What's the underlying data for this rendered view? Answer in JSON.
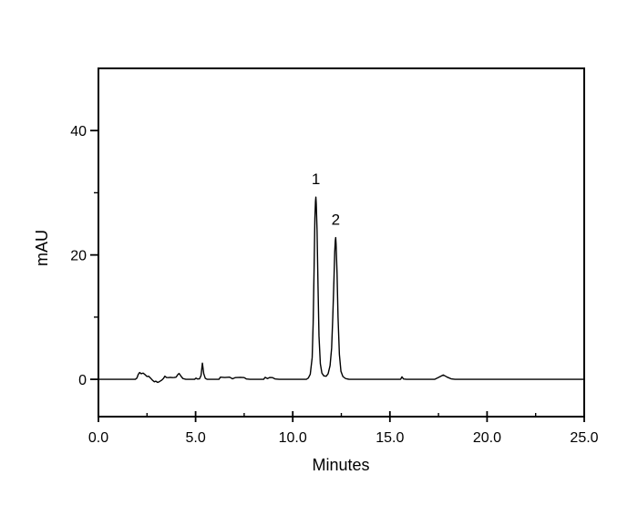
{
  "figure": {
    "background": "#ffffff",
    "line_color": "#000000",
    "text_color": "#000000"
  },
  "chart_data": {
    "type": "line",
    "title": "",
    "xlabel": "Minutes",
    "ylabel": "mAU",
    "xlim": [
      0,
      25
    ],
    "ylim": [
      -6,
      50
    ],
    "grid": false,
    "legend_position": "none",
    "x_major_ticks": [
      {
        "value": 0,
        "label": "0.0"
      },
      {
        "value": 5,
        "label": "5.0"
      },
      {
        "value": 10,
        "label": "10.0"
      },
      {
        "value": 15,
        "label": "15.0"
      },
      {
        "value": 20,
        "label": "20.0"
      },
      {
        "value": 25,
        "label": "25.0"
      }
    ],
    "x_minor_ticks": [
      2.5,
      7.5,
      12.5,
      17.5,
      22.5
    ],
    "y_major_ticks": [
      {
        "value": 0,
        "label": "0"
      },
      {
        "value": 20,
        "label": "20"
      },
      {
        "value": 40,
        "label": "40"
      }
    ],
    "y_minor_ticks": [
      10,
      30
    ],
    "peak_annotations": [
      {
        "label": "1",
        "x_minutes": 11.19,
        "height_mAU": 29.3
      },
      {
        "label": "2",
        "x_minutes": 12.21,
        "height_mAU": 22.8
      }
    ],
    "series": [
      {
        "name": "chromatogram-trace",
        "points": [
          [
            0,
            0
          ],
          [
            1.9,
            0
          ],
          [
            1.98,
            0.2
          ],
          [
            2.05,
            0.8
          ],
          [
            2.12,
            1.1
          ],
          [
            2.2,
            0.9
          ],
          [
            2.3,
            1.0
          ],
          [
            2.4,
            0.75
          ],
          [
            2.5,
            0.45
          ],
          [
            2.58,
            0.5
          ],
          [
            2.68,
            0.2
          ],
          [
            2.78,
            -0.15
          ],
          [
            2.88,
            -0.4
          ],
          [
            2.95,
            -0.3
          ],
          [
            3.05,
            -0.5
          ],
          [
            3.15,
            -0.35
          ],
          [
            3.25,
            -0.15
          ],
          [
            3.35,
            0.15
          ],
          [
            3.42,
            0.5
          ],
          [
            3.5,
            0.3
          ],
          [
            3.6,
            0.28
          ],
          [
            3.7,
            0.32
          ],
          [
            3.8,
            0.28
          ],
          [
            3.9,
            0.3
          ],
          [
            4.0,
            0.35
          ],
          [
            4.08,
            0.75
          ],
          [
            4.15,
            0.95
          ],
          [
            4.25,
            0.5
          ],
          [
            4.35,
            0.12
          ],
          [
            4.5,
            0
          ],
          [
            4.95,
            0
          ],
          [
            5.02,
            0.2
          ],
          [
            5.1,
            0.05
          ],
          [
            5.2,
            0.08
          ],
          [
            5.28,
            0.6
          ],
          [
            5.35,
            2.6
          ],
          [
            5.42,
            0.9
          ],
          [
            5.5,
            0.15
          ],
          [
            5.6,
            0
          ],
          [
            6.2,
            0
          ],
          [
            6.28,
            0.35
          ],
          [
            6.5,
            0.3
          ],
          [
            6.75,
            0.35
          ],
          [
            6.9,
            0.08
          ],
          [
            7.05,
            0.28
          ],
          [
            7.3,
            0.32
          ],
          [
            7.5,
            0.28
          ],
          [
            7.62,
            0.05
          ],
          [
            7.8,
            0
          ],
          [
            8.5,
            0
          ],
          [
            8.58,
            0.32
          ],
          [
            8.7,
            0.12
          ],
          [
            8.82,
            0.3
          ],
          [
            8.95,
            0.28
          ],
          [
            9.1,
            0.05
          ],
          [
            9.3,
            0
          ],
          [
            10.7,
            0
          ],
          [
            10.8,
            0.2
          ],
          [
            10.9,
            0.8
          ],
          [
            11.0,
            3.5
          ],
          [
            11.05,
            9
          ],
          [
            11.1,
            18
          ],
          [
            11.14,
            26
          ],
          [
            11.17,
            28.6
          ],
          [
            11.19,
            29.3
          ],
          [
            11.21,
            28.2
          ],
          [
            11.25,
            24
          ],
          [
            11.3,
            15
          ],
          [
            11.35,
            7
          ],
          [
            11.42,
            2.5
          ],
          [
            11.5,
            1.0
          ],
          [
            11.6,
            0.55
          ],
          [
            11.72,
            0.5
          ],
          [
            11.82,
            0.9
          ],
          [
            11.92,
            2.2
          ],
          [
            12.0,
            5
          ],
          [
            12.06,
            10
          ],
          [
            12.12,
            16
          ],
          [
            12.16,
            20.5
          ],
          [
            12.19,
            22.3
          ],
          [
            12.21,
            22.8
          ],
          [
            12.23,
            21.8
          ],
          [
            12.28,
            17
          ],
          [
            12.33,
            10
          ],
          [
            12.4,
            4
          ],
          [
            12.48,
            1.3
          ],
          [
            12.58,
            0.45
          ],
          [
            12.72,
            0.12
          ],
          [
            12.9,
            0
          ],
          [
            15.55,
            0
          ],
          [
            15.62,
            0.4
          ],
          [
            15.7,
            0.05
          ],
          [
            15.85,
            0
          ],
          [
            17.3,
            0
          ],
          [
            17.5,
            0.3
          ],
          [
            17.75,
            0.7
          ],
          [
            17.95,
            0.35
          ],
          [
            18.15,
            0.08
          ],
          [
            18.35,
            0
          ],
          [
            25,
            0
          ]
        ]
      }
    ]
  }
}
